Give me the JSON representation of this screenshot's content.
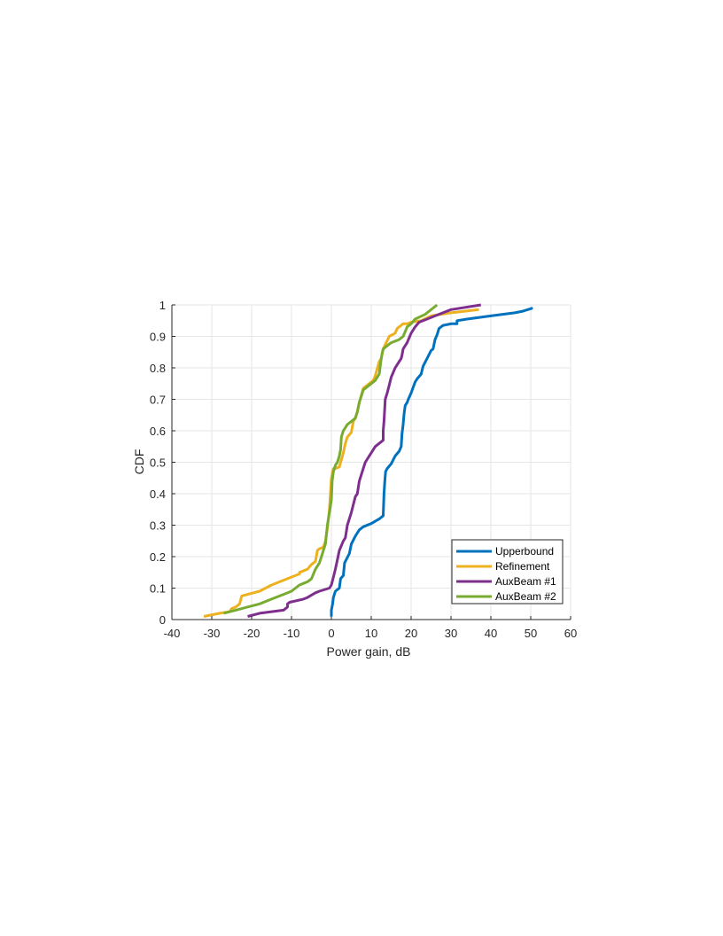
{
  "chart_data": {
    "type": "line",
    "title": "",
    "xlabel": "Power gain, dB",
    "ylabel": "CDF",
    "xlim": [
      -40,
      60
    ],
    "ylim": [
      0,
      1
    ],
    "xticks": [
      -40,
      -30,
      -20,
      -10,
      0,
      10,
      20,
      30,
      40,
      50,
      60
    ],
    "yticks": [
      0,
      0.1,
      0.2,
      0.3,
      0.4,
      0.5,
      0.6,
      0.7,
      0.8,
      0.9,
      1
    ],
    "xtick_labels": [
      "-40",
      "-30",
      "-20",
      "-10",
      "0",
      "10",
      "20",
      "30",
      "40",
      "50",
      "60"
    ],
    "ytick_labels": [
      "0",
      "0.1",
      "0.2",
      "0.3",
      "0.4",
      "0.5",
      "0.6",
      "0.7",
      "0.8",
      "0.9",
      "1"
    ],
    "grid": true,
    "legend_position": "bottom-right",
    "series": [
      {
        "name": "Upperbound",
        "color": "#0072BD",
        "x": [
          0,
          0,
          0.3,
          0.5,
          1,
          2,
          2.3,
          3,
          3.3,
          4.5,
          5,
          6,
          7,
          8,
          10,
          12,
          13,
          13.2,
          13.4,
          13.6,
          14,
          15,
          16,
          17,
          17.5,
          17.7,
          18,
          18.2,
          18.5,
          19,
          19.3,
          20,
          21,
          21.5,
          22.5,
          23,
          24,
          25,
          25.5,
          26,
          26.5,
          27,
          28,
          30,
          31.5,
          31.5,
          34,
          40,
          46,
          48,
          50.5
        ],
        "y": [
          0.01,
          0.03,
          0.05,
          0.07,
          0.09,
          0.1,
          0.13,
          0.14,
          0.18,
          0.21,
          0.24,
          0.265,
          0.285,
          0.295,
          0.305,
          0.32,
          0.33,
          0.4,
          0.44,
          0.47,
          0.48,
          0.495,
          0.52,
          0.535,
          0.55,
          0.59,
          0.62,
          0.65,
          0.68,
          0.69,
          0.7,
          0.72,
          0.755,
          0.765,
          0.78,
          0.805,
          0.83,
          0.855,
          0.86,
          0.89,
          0.905,
          0.925,
          0.935,
          0.94,
          0.94,
          0.95,
          0.955,
          0.965,
          0.975,
          0.98,
          0.99
        ]
      },
      {
        "name": "Refinement",
        "color": "#EDB120",
        "x": [
          -32,
          -28,
          -25.5,
          -25,
          -24,
          -23,
          -22.5,
          -21,
          -18,
          -15,
          -12,
          -8,
          -8,
          -6,
          -5,
          -4,
          -3.5,
          -3,
          -2,
          -1.5,
          -1,
          -0.5,
          0,
          0.5,
          1,
          2,
          3,
          3.5,
          4,
          5,
          5.5,
          6,
          6.5,
          7,
          8,
          9,
          10.5,
          11,
          12,
          12.5,
          13,
          14.5,
          16,
          16.5,
          18,
          19,
          20,
          22.5,
          25,
          30,
          37
        ],
        "y": [
          0.01,
          0.02,
          0.025,
          0.035,
          0.04,
          0.05,
          0.075,
          0.08,
          0.09,
          0.11,
          0.125,
          0.145,
          0.15,
          0.16,
          0.175,
          0.185,
          0.22,
          0.225,
          0.23,
          0.25,
          0.29,
          0.35,
          0.45,
          0.48,
          0.48,
          0.485,
          0.53,
          0.56,
          0.58,
          0.595,
          0.63,
          0.64,
          0.66,
          0.69,
          0.735,
          0.745,
          0.76,
          0.775,
          0.82,
          0.83,
          0.86,
          0.9,
          0.91,
          0.925,
          0.94,
          0.94,
          0.945,
          0.95,
          0.965,
          0.975,
          0.985
        ]
      },
      {
        "name": "AuxBeam #1",
        "color": "#7E2F8E",
        "x": [
          -21,
          -18,
          -15,
          -12,
          -11,
          -11,
          -10.5,
          -7,
          -6,
          -4,
          -3,
          -0.5,
          0,
          0.5,
          1,
          1.5,
          2,
          3,
          3.5,
          4,
          5,
          6,
          6.5,
          7,
          8,
          8.5,
          9,
          10,
          11,
          12,
          12.5,
          13,
          13,
          13.2,
          13.5,
          14,
          14.5,
          15,
          16,
          17,
          17.5,
          17.7,
          18,
          19,
          20,
          21,
          22,
          24,
          26,
          30,
          37.5
        ],
        "y": [
          0.01,
          0.02,
          0.025,
          0.03,
          0.04,
          0.05,
          0.055,
          0.065,
          0.07,
          0.085,
          0.09,
          0.1,
          0.11,
          0.135,
          0.16,
          0.19,
          0.22,
          0.25,
          0.26,
          0.3,
          0.34,
          0.39,
          0.4,
          0.44,
          0.48,
          0.5,
          0.51,
          0.53,
          0.55,
          0.56,
          0.565,
          0.57,
          0.6,
          0.63,
          0.7,
          0.72,
          0.745,
          0.77,
          0.8,
          0.82,
          0.83,
          0.84,
          0.86,
          0.88,
          0.91,
          0.93,
          0.945,
          0.955,
          0.965,
          0.985,
          1.0
        ]
      },
      {
        "name": "AuxBeam #2",
        "color": "#77AC30",
        "x": [
          -27,
          -24,
          -21,
          -18,
          -15,
          -12,
          -10,
          -9,
          -8,
          -7,
          -6,
          -5,
          -4,
          -3,
          -2.5,
          -2,
          -1.5,
          -1,
          -0.5,
          0,
          0.2,
          0.5,
          1,
          1.5,
          2,
          2.3,
          2.5,
          3,
          4,
          5,
          6,
          6.5,
          7,
          8,
          9,
          10,
          11,
          12,
          12.5,
          12.8,
          13,
          14,
          15,
          17,
          18,
          18.5,
          19,
          20,
          21,
          23.5,
          26.5
        ],
        "y": [
          0.02,
          0.03,
          0.04,
          0.05,
          0.065,
          0.08,
          0.09,
          0.1,
          0.11,
          0.115,
          0.12,
          0.13,
          0.16,
          0.18,
          0.2,
          0.22,
          0.24,
          0.3,
          0.34,
          0.38,
          0.44,
          0.47,
          0.49,
          0.5,
          0.52,
          0.54,
          0.58,
          0.6,
          0.62,
          0.63,
          0.64,
          0.66,
          0.69,
          0.73,
          0.74,
          0.75,
          0.76,
          0.78,
          0.83,
          0.85,
          0.86,
          0.87,
          0.88,
          0.89,
          0.9,
          0.915,
          0.93,
          0.94,
          0.955,
          0.97,
          1.0
        ]
      }
    ]
  }
}
